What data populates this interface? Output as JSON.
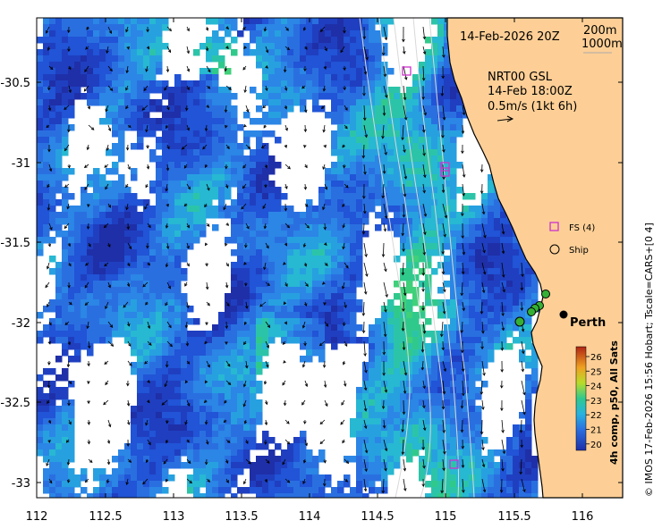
{
  "map": {
    "date_title": "14-Feb-2026 20Z",
    "isobath_labels": [
      "200m",
      "1000m"
    ],
    "current_title": "NRT00 GSL",
    "current_time": "14-Feb 18:00Z",
    "current_scale": "0.5m/s (1kt 6h)",
    "legend_fs": "FS (4)",
    "legend_ship": "Ship",
    "city": "Perth",
    "x_ticks": [
      "112",
      "112.5",
      "113",
      "113.5",
      "114",
      "114.5",
      "115",
      "115.5",
      "116"
    ],
    "y_ticks": [
      "-30.5",
      "-31",
      "-31.5",
      "-32",
      "-32.5",
      "-33"
    ],
    "colorbar_ticks": [
      "26",
      "25",
      "24",
      "23",
      "22",
      "21",
      "20"
    ],
    "colorbar_label": "4h comp, p50, All Sats",
    "credit": "© IMOS 17-Feb-2026 15:56 Hobart; Tscale=CARS+[0 4]",
    "colors": {
      "land": "#fdcf96",
      "sst_cold": "#1f2fa8",
      "sst_warm": "#c0392b",
      "fs_marker": "#cc33cc",
      "ship_marker": "#35b035"
    }
  }
}
